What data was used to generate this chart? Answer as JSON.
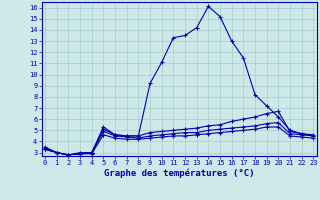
{
  "xlabel": "Graphe des températures (°C)",
  "background_color": "#cce8e8",
  "grid_color": "#aacccc",
  "line_color": "#0000aa",
  "xticks": [
    0,
    1,
    2,
    3,
    4,
    5,
    6,
    7,
    8,
    9,
    10,
    11,
    12,
    13,
    14,
    15,
    16,
    17,
    18,
    19,
    20,
    21,
    22,
    23
  ],
  "yticks": [
    3,
    4,
    5,
    6,
    7,
    8,
    9,
    10,
    11,
    12,
    13,
    14,
    15,
    16
  ],
  "xlim": [
    -0.3,
    23.3
  ],
  "ylim": [
    2.7,
    16.5
  ],
  "line1_x": [
    0,
    1,
    2,
    3,
    4,
    5,
    6,
    7,
    8,
    9,
    10,
    11,
    12,
    13,
    14,
    15,
    16,
    17,
    18,
    19,
    20,
    21,
    22,
    23
  ],
  "line1_y": [
    3.5,
    3.0,
    2.8,
    3.0,
    3.0,
    5.3,
    4.6,
    4.5,
    4.5,
    9.2,
    11.1,
    13.3,
    13.5,
    14.2,
    16.1,
    15.2,
    13.0,
    11.5,
    8.2,
    7.2,
    6.2,
    5.0,
    4.7,
    4.5
  ],
  "line2_x": [
    0,
    1,
    2,
    3,
    4,
    5,
    6,
    7,
    8,
    9,
    10,
    11,
    12,
    13,
    14,
    15,
    16,
    17,
    18,
    19,
    20,
    21,
    22,
    23
  ],
  "line2_y": [
    3.4,
    3.0,
    2.8,
    2.9,
    3.0,
    5.1,
    4.6,
    4.5,
    4.5,
    4.8,
    4.9,
    5.0,
    5.1,
    5.2,
    5.4,
    5.5,
    5.8,
    6.0,
    6.2,
    6.5,
    6.7,
    4.9,
    4.7,
    4.6
  ],
  "line3_x": [
    0,
    1,
    2,
    3,
    4,
    5,
    6,
    7,
    8,
    9,
    10,
    11,
    12,
    13,
    14,
    15,
    16,
    17,
    18,
    19,
    20,
    21,
    22,
    23
  ],
  "line3_y": [
    3.3,
    3.0,
    2.8,
    2.9,
    3.0,
    4.9,
    4.5,
    4.4,
    4.3,
    4.5,
    4.6,
    4.7,
    4.8,
    4.8,
    5.0,
    5.1,
    5.2,
    5.3,
    5.4,
    5.6,
    5.7,
    4.7,
    4.6,
    4.5
  ],
  "line4_x": [
    0,
    1,
    2,
    3,
    4,
    5,
    6,
    7,
    8,
    9,
    10,
    11,
    12,
    13,
    14,
    15,
    16,
    17,
    18,
    19,
    20,
    21,
    22,
    23
  ],
  "line4_y": [
    3.3,
    3.0,
    2.8,
    2.9,
    2.9,
    4.6,
    4.3,
    4.2,
    4.2,
    4.3,
    4.4,
    4.5,
    4.5,
    4.6,
    4.7,
    4.8,
    4.9,
    5.0,
    5.1,
    5.3,
    5.3,
    4.5,
    4.4,
    4.3
  ],
  "tick_fontsize": 5,
  "xlabel_fontsize": 6.5
}
